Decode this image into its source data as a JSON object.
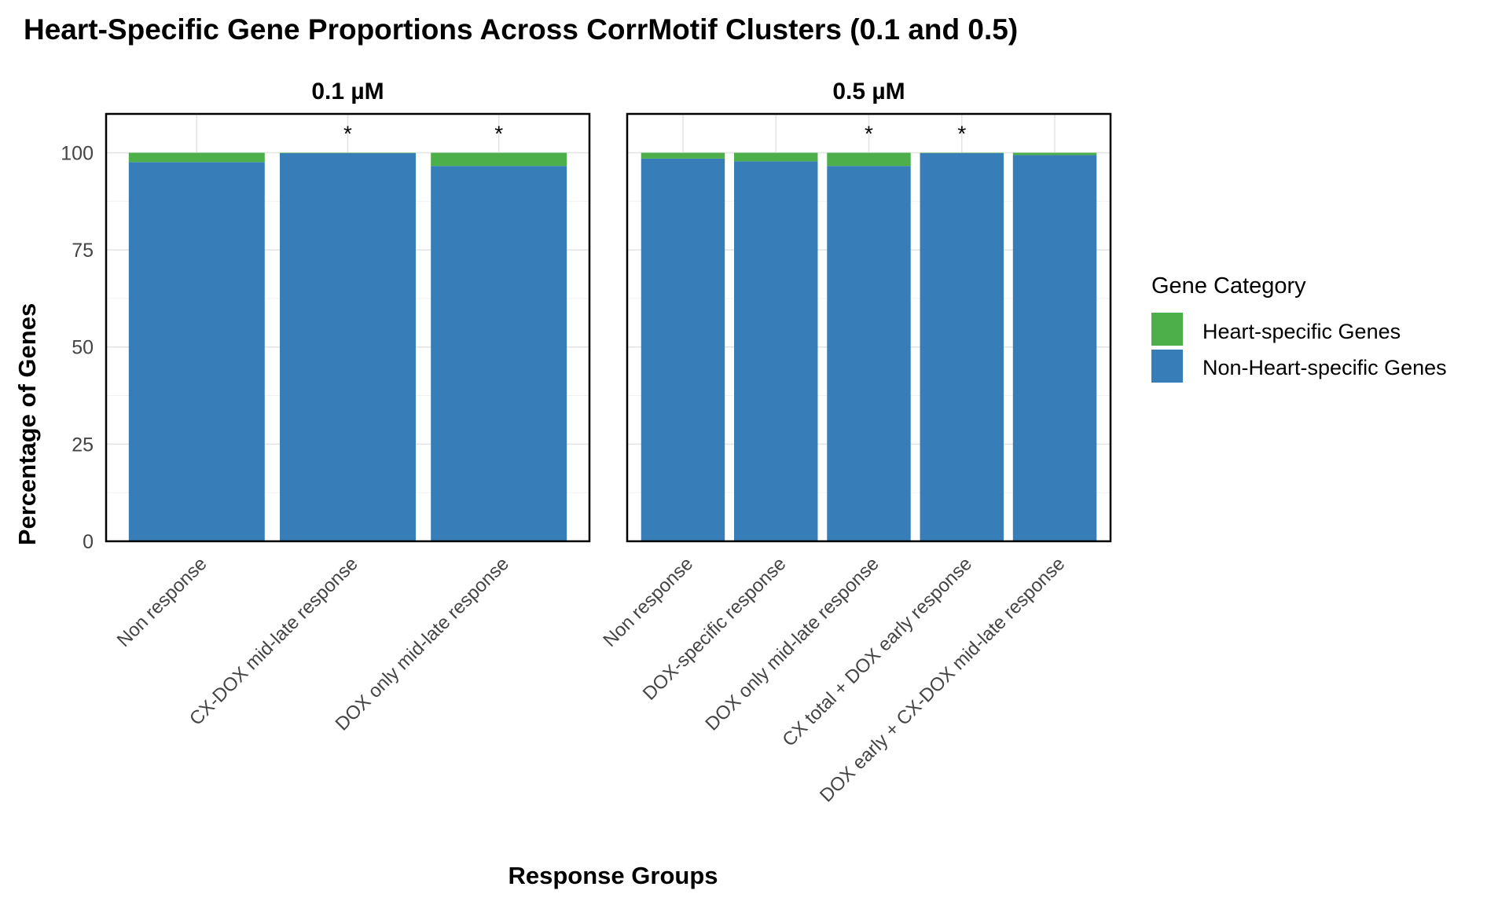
{
  "chart_data": {
    "type": "bar",
    "stacked": true,
    "title": "Heart-Specific Gene Proportions Across CorrMotif Clusters (0.1 and 0.5)",
    "xlabel": "Response Groups",
    "ylabel": "Percentage of Genes",
    "ylim": [
      0,
      110
    ],
    "yticks": [
      "0",
      "25",
      "50",
      "75",
      "100"
    ],
    "grid": true,
    "legend": {
      "title": "Gene Category",
      "position": "right",
      "entries": [
        {
          "name": "Heart-specific Genes",
          "color": "#4DAF4A"
        },
        {
          "name": "Non-Heart-specific Genes",
          "color": "#377EB8"
        }
      ]
    },
    "panels": [
      {
        "title": "0.1 µM",
        "categories": [
          "Non response",
          "CX-DOX mid-late response",
          "DOX only mid-late response"
        ],
        "series": [
          {
            "name": "Non-Heart-specific Genes",
            "values": [
              97.6,
              99.9,
              96.6
            ]
          },
          {
            "name": "Heart-specific Genes",
            "values": [
              2.4,
              0.1,
              3.4
            ]
          }
        ],
        "significance": [
          "",
          "*",
          "*"
        ]
      },
      {
        "title": "0.5 µM",
        "categories": [
          "Non response",
          "DOX-specific response",
          "DOX only mid-late response",
          "CX total + DOX early response",
          "DOX early + CX-DOX mid-late response"
        ],
        "series": [
          {
            "name": "Non-Heart-specific Genes",
            "values": [
              98.5,
              97.8,
              96.6,
              99.9,
              99.4
            ]
          },
          {
            "name": "Heart-specific Genes",
            "values": [
              1.5,
              2.2,
              3.4,
              0.1,
              0.6
            ]
          }
        ],
        "significance": [
          "",
          "",
          "*",
          "*",
          ""
        ]
      }
    ]
  }
}
